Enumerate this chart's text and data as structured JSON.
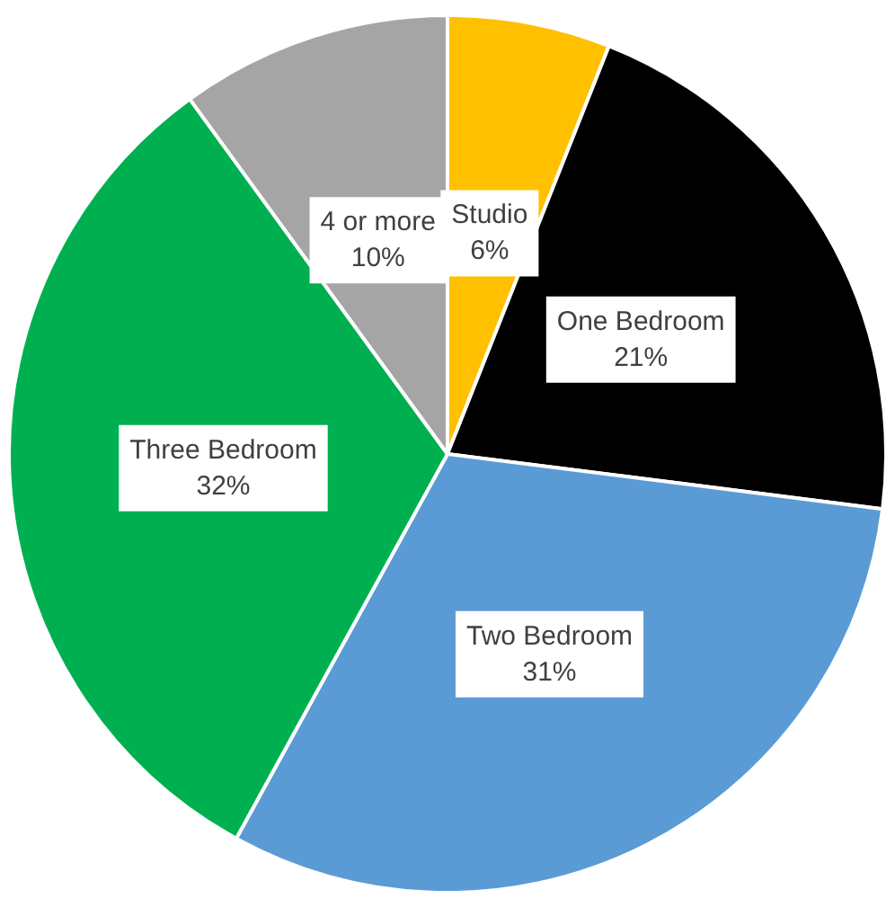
{
  "chart_data": {
    "type": "pie",
    "categories": [
      "Studio",
      "One Bedroom",
      "Two Bedroom",
      "Three Bedroom",
      "4 or more"
    ],
    "values": [
      6,
      21,
      31,
      32,
      10
    ],
    "colors": [
      "#ffc000",
      "#000000",
      "#5b9bd5",
      "#00b050",
      "#a5a5a5"
    ],
    "value_labels": [
      "6%",
      "21%",
      "31%",
      "32%",
      "10%"
    ],
    "legend": false
  }
}
